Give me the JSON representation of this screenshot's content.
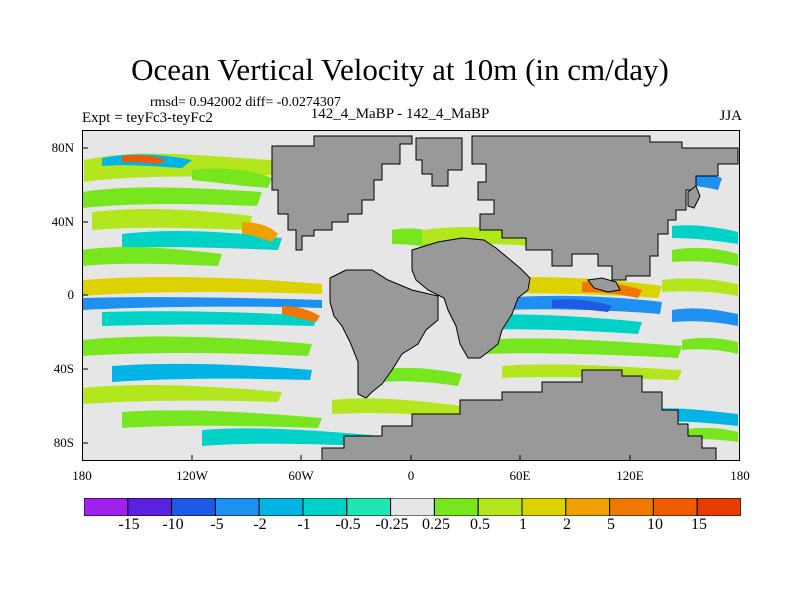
{
  "header": {
    "title": "Ocean Vertical Velocity at 10m (in cm/day)",
    "stats": "rmsd= 0.942002 diff= -0.0274307",
    "experiment": "Expt = teyFc3-teyFc2",
    "run_label": "142_4_MaBP - 142_4_MaBP",
    "season": "JJA"
  },
  "axes": {
    "lat_ticks": [
      "80N",
      "40N",
      "0",
      "40S",
      "80S"
    ],
    "lon_ticks": [
      "180",
      "120W",
      "60W",
      "0",
      "60E",
      "120E",
      "180"
    ]
  },
  "colorbar": {
    "labels": [
      "-15",
      "-10",
      "-5",
      "-2",
      "-1",
      "-0.5",
      "-0.25",
      "0.25",
      "0.5",
      "1",
      "2",
      "5",
      "10",
      "15"
    ],
    "colors": [
      "#a020f0",
      "#5a22e0",
      "#1e5ae6",
      "#1e90f0",
      "#00b4e6",
      "#00d2c8",
      "#1ee6b4",
      "#e6e6e6",
      "#78e61e",
      "#b4e61e",
      "#dcd200",
      "#f0a000",
      "#f07800",
      "#f05a00",
      "#e63c00"
    ]
  },
  "map_colors": {
    "land": "#999999",
    "neutral": "#e6e6e6"
  }
}
